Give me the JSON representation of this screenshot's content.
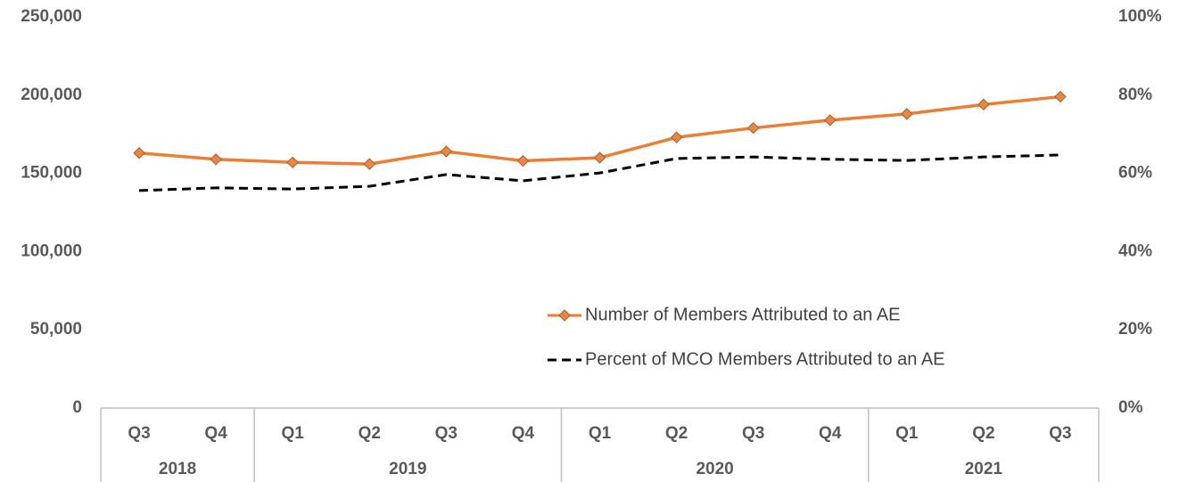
{
  "chart_data": {
    "type": "line",
    "groups": [
      {
        "label": "2018",
        "categories": [
          "Q3",
          "Q4"
        ]
      },
      {
        "label": "2019",
        "categories": [
          "Q1",
          "Q2",
          "Q3",
          "Q4"
        ]
      },
      {
        "label": "2020",
        "categories": [
          "Q1",
          "Q2",
          "Q3",
          "Q4"
        ]
      },
      {
        "label": "2021",
        "categories": [
          "Q1",
          "Q2",
          "Q3"
        ]
      }
    ],
    "series": [
      {
        "name": "Number of Members Attributed to an AE",
        "color": "#ed7d31",
        "marker": "diamond",
        "values": [
          163000,
          159000,
          157000,
          156000,
          164000,
          158000,
          160000,
          173000,
          179000,
          184000,
          188000,
          194000,
          199000
        ]
      },
      {
        "name": "Percent of MCO Members Attributed to an AE",
        "color": "#000000",
        "dash": true,
        "axis": "y2",
        "values": [
          55.6,
          56.3,
          56.0,
          56.7,
          59.7,
          58.1,
          60.1,
          63.8,
          64.2,
          63.6,
          63.3,
          64.2,
          64.7
        ]
      }
    ],
    "ylim": [
      0,
      250000
    ],
    "yticks": [
      0,
      {
        "value": 50000,
        "label": "50,000"
      },
      {
        "value": 100000,
        "label": "100,000"
      },
      {
        "value": 150000,
        "label": "150,000"
      },
      {
        "value": 200000,
        "label": "200,000"
      },
      {
        "value": 250000,
        "label": "250,000"
      }
    ],
    "y2lim": [
      0,
      100
    ],
    "y2ticks": [
      {
        "value": 0,
        "label": "0%"
      },
      {
        "value": 20,
        "label": "20%"
      },
      {
        "value": 40,
        "label": "40%"
      },
      {
        "value": 60,
        "label": "60%"
      },
      {
        "value": 80,
        "label": "80%"
      },
      {
        "value": 100,
        "label": "100%"
      }
    ],
    "legend": "lower right"
  }
}
